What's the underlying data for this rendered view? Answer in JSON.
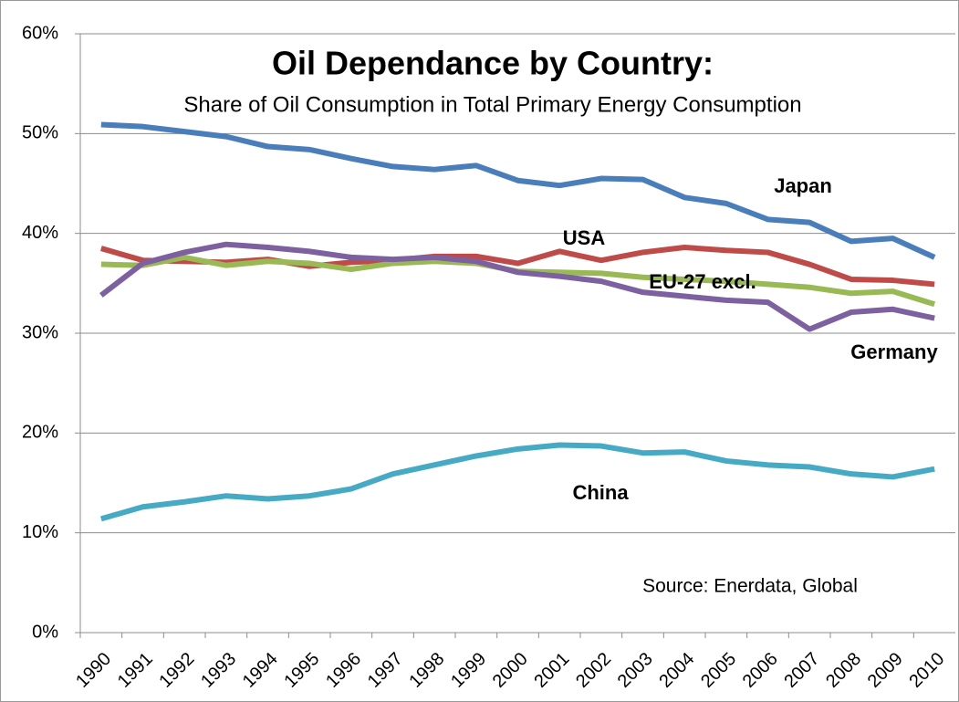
{
  "chart_data": {
    "type": "line",
    "title": "Oil Dependance by Country:",
    "subtitle": "Share of Oil Consumption in Total Primary Energy Consumption",
    "source": "Source: Enerdata,  Global",
    "categories": [
      "1990",
      "1991",
      "1992",
      "1993",
      "1994",
      "1995",
      "1996",
      "1997",
      "1998",
      "1999",
      "2000",
      "2001",
      "2002",
      "2003",
      "2004",
      "2005",
      "2006",
      "2007",
      "2008",
      "2009",
      "2010"
    ],
    "series": [
      {
        "name": "Japan",
        "color": "#4a7ebb",
        "values": [
          50.9,
          50.7,
          50.2,
          49.7,
          48.7,
          48.4,
          47.5,
          46.7,
          46.4,
          46.8,
          45.3,
          44.8,
          45.5,
          45.4,
          43.6,
          43.0,
          41.4,
          41.1,
          39.2,
          39.5,
          37.6
        ]
      },
      {
        "name": "USA",
        "color": "#be4b48",
        "values": [
          38.5,
          37.3,
          37.2,
          37.1,
          37.4,
          36.7,
          37.1,
          37.3,
          37.7,
          37.7,
          37.0,
          38.2,
          37.3,
          38.1,
          38.6,
          38.3,
          38.1,
          36.9,
          35.4,
          35.3,
          34.9
        ]
      },
      {
        "name": "EU-27 excl.",
        "color": "#98b954",
        "values": [
          36.9,
          36.8,
          37.6,
          36.8,
          37.2,
          37.0,
          36.4,
          37.0,
          37.2,
          37.0,
          36.2,
          36.1,
          36.0,
          35.6,
          35.4,
          35.2,
          34.9,
          34.6,
          34.0,
          34.2,
          32.9
        ]
      },
      {
        "name": "Germany",
        "color": "#7d60a0",
        "values": [
          33.8,
          37.0,
          38.1,
          38.9,
          38.6,
          38.2,
          37.6,
          37.4,
          37.6,
          37.2,
          36.1,
          35.7,
          35.2,
          34.1,
          33.7,
          33.3,
          33.1,
          30.4,
          32.1,
          32.4,
          31.5
        ]
      },
      {
        "name": "China",
        "color": "#46aac5",
        "values": [
          11.4,
          12.6,
          13.1,
          13.7,
          13.4,
          13.7,
          14.4,
          15.9,
          16.8,
          17.7,
          18.4,
          18.8,
          18.7,
          18.0,
          18.1,
          17.2,
          16.8,
          16.6,
          15.9,
          15.6,
          16.4
        ]
      }
    ],
    "ylim": [
      0,
      60
    ],
    "yticks": [
      {
        "value": 0,
        "label": "0%"
      },
      {
        "value": 10,
        "label": "10%"
      },
      {
        "value": 20,
        "label": "20%"
      },
      {
        "value": 30,
        "label": "30%"
      },
      {
        "value": 40,
        "label": "40%"
      },
      {
        "value": 50,
        "label": "50%"
      },
      {
        "value": 60,
        "label": "60%"
      }
    ],
    "grid": true
  }
}
